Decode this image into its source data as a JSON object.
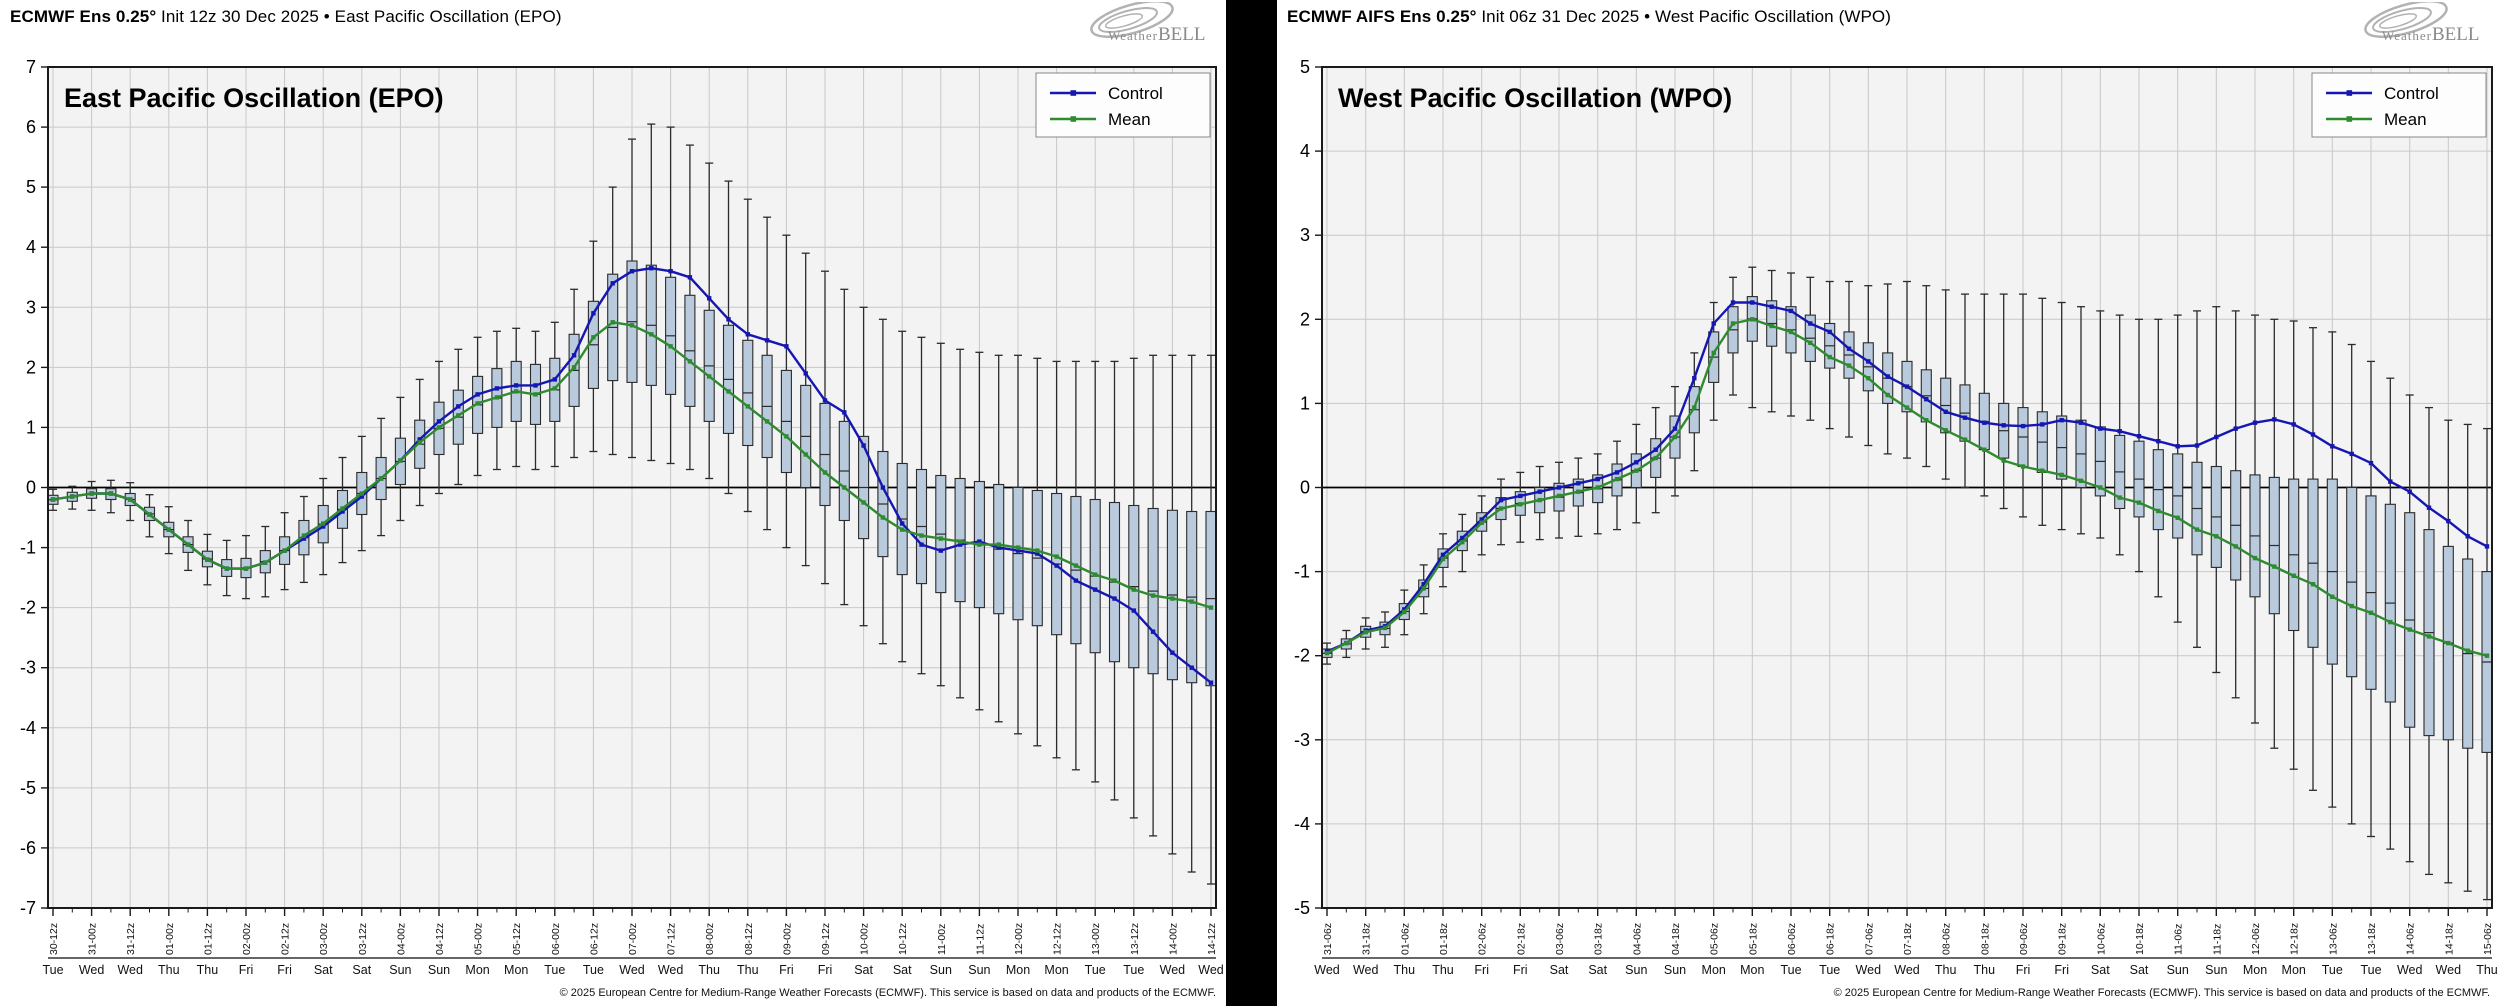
{
  "colors": {
    "control": "#1616b2",
    "mean": "#2f8b2f",
    "box_fill": "#b9cadd",
    "box_stroke": "#2b2b2b",
    "grid": "#c8c8c8",
    "plot_bg": "#f3f3f3",
    "zero_line": "#000000",
    "frame": "#1a1a1a",
    "divider": "#000000",
    "logo_gray": "#8a8a8a"
  },
  "panels": [
    {
      "header": {
        "bold": "ECMWF Ens 0.25°",
        "rest": " Init 12z 30 Dec 2025 • East Pacific Oscillation (EPO)"
      },
      "logo": {
        "weather": "Weather",
        "bell": "BELL"
      },
      "footer": "© 2025 European Centre for Medium-Range Weather Forecasts (ECMWF). This service is based on data and products of the ECMWF."
    },
    {
      "header": {
        "bold": "ECMWF AIFS Ens 0.25°",
        "rest": " Init 06z 31 Dec 2025 • West Pacific Oscillation (WPO)"
      },
      "logo": {
        "weather": "Weather",
        "bell": "BELL"
      },
      "footer": "© 2025 European Centre for Medium-Range Weather Forecasts (ECMWF). This service is based on data and products of the ECMWF."
    }
  ],
  "chart_data": [
    {
      "type": "line+box",
      "title": "East Pacific Oscillation (EPO)",
      "ylim": [
        -7,
        7
      ],
      "yticks": [
        7,
        6,
        5,
        4,
        3,
        2,
        1,
        0,
        -1,
        -2,
        -3,
        -4,
        -5,
        -6,
        -7
      ],
      "points_per_label": 2,
      "x_major_labels": [
        "30-12z",
        "31-00z",
        "31-12z",
        "01-00z",
        "01-12z",
        "02-00z",
        "02-12z",
        "03-00z",
        "03-12z",
        "04-00z",
        "04-12z",
        "05-00z",
        "05-12z",
        "06-00z",
        "06-12z",
        "07-00z",
        "07-12z",
        "08-00z",
        "08-12z",
        "09-00z",
        "09-12z",
        "10-00z",
        "10-12z",
        "11-00z",
        "11-12z",
        "12-00z",
        "12-12z",
        "13-00z",
        "13-12z",
        "14-00z",
        "14-12z"
      ],
      "x_day_labels": [
        "Tue",
        "Wed",
        "Wed",
        "Thu",
        "Thu",
        "Fri",
        "Fri",
        "Sat",
        "Sat",
        "Sun",
        "Sun",
        "Mon",
        "Mon",
        "Tue",
        "Tue",
        "Wed",
        "Wed",
        "Thu",
        "Thu",
        "Fri",
        "Fri",
        "Sat",
        "Sat",
        "Sun",
        "Sun",
        "Mon",
        "Mon",
        "Tue",
        "Tue",
        "Wed",
        "Wed"
      ],
      "legend": [
        {
          "label": "Control",
          "color": "#1616b2"
        },
        {
          "label": "Mean",
          "color": "#2f8b2f"
        }
      ],
      "legend_position": "top-right",
      "grid": true,
      "series": [
        {
          "name": "Control",
          "color": "#1616b2",
          "values": [
            -0.2,
            -0.15,
            -0.1,
            -0.1,
            -0.2,
            -0.45,
            -0.7,
            -0.95,
            -1.2,
            -1.35,
            -1.35,
            -1.25,
            -1.05,
            -0.85,
            -0.65,
            -0.4,
            -0.15,
            0.15,
            0.45,
            0.8,
            1.1,
            1.35,
            1.55,
            1.65,
            1.7,
            1.7,
            1.8,
            2.2,
            2.9,
            3.4,
            3.6,
            3.65,
            3.6,
            3.5,
            3.15,
            2.8,
            2.55,
            2.45,
            2.35,
            1.9,
            1.45,
            1.25,
            0.7,
            0.0,
            -0.6,
            -0.95,
            -1.05,
            -0.95,
            -0.9,
            -1.0,
            -1.05,
            -1.1,
            -1.3,
            -1.55,
            -1.7,
            -1.85,
            -2.05,
            -2.4,
            -2.75,
            -3.0,
            -3.25
          ]
        },
        {
          "name": "Mean",
          "color": "#2f8b2f",
          "values": [
            -0.2,
            -0.15,
            -0.1,
            -0.1,
            -0.2,
            -0.45,
            -0.7,
            -0.95,
            -1.2,
            -1.35,
            -1.35,
            -1.25,
            -1.05,
            -0.8,
            -0.6,
            -0.35,
            -0.1,
            0.15,
            0.45,
            0.75,
            1.0,
            1.2,
            1.4,
            1.5,
            1.6,
            1.55,
            1.65,
            2.0,
            2.5,
            2.75,
            2.7,
            2.55,
            2.35,
            2.1,
            1.85,
            1.6,
            1.35,
            1.1,
            0.85,
            0.55,
            0.25,
            0.0,
            -0.25,
            -0.5,
            -0.7,
            -0.8,
            -0.85,
            -0.9,
            -0.95,
            -0.95,
            -1.0,
            -1.05,
            -1.15,
            -1.3,
            -1.45,
            -1.55,
            -1.7,
            -1.8,
            -1.85,
            -1.9,
            -2.0
          ]
        }
      ],
      "boxes": {
        "q1": [
          -0.28,
          -0.23,
          -0.18,
          -0.2,
          -0.3,
          -0.55,
          -0.82,
          -1.08,
          -1.32,
          -1.48,
          -1.5,
          -1.42,
          -1.28,
          -1.12,
          -0.92,
          -0.68,
          -0.45,
          -0.2,
          0.05,
          0.32,
          0.55,
          0.72,
          0.9,
          1.0,
          1.1,
          1.05,
          1.1,
          1.35,
          1.65,
          1.78,
          1.75,
          1.7,
          1.55,
          1.35,
          1.1,
          0.9,
          0.7,
          0.5,
          0.25,
          0.0,
          -0.3,
          -0.55,
          -0.85,
          -1.15,
          -1.45,
          -1.6,
          -1.75,
          -1.9,
          -2.0,
          -2.1,
          -2.2,
          -2.3,
          -2.45,
          -2.6,
          -2.75,
          -2.9,
          -3.0,
          -3.1,
          -3.2,
          -3.25,
          -3.3
        ],
        "q3": [
          -0.13,
          -0.08,
          -0.02,
          -0.02,
          -0.1,
          -0.33,
          -0.58,
          -0.82,
          -1.06,
          -1.2,
          -1.18,
          -1.05,
          -0.82,
          -0.55,
          -0.3,
          -0.05,
          0.25,
          0.5,
          0.82,
          1.12,
          1.42,
          1.62,
          1.85,
          1.98,
          2.1,
          2.05,
          2.15,
          2.55,
          3.1,
          3.55,
          3.77,
          3.7,
          3.5,
          3.2,
          2.95,
          2.7,
          2.45,
          2.2,
          1.95,
          1.7,
          1.4,
          1.1,
          0.85,
          0.6,
          0.4,
          0.3,
          0.2,
          0.15,
          0.1,
          0.05,
          0.0,
          -0.05,
          -0.1,
          -0.15,
          -0.2,
          -0.25,
          -0.3,
          -0.35,
          -0.38,
          -0.4,
          -0.4
        ],
        "whisker_lo": [
          -0.38,
          -0.36,
          -0.38,
          -0.42,
          -0.55,
          -0.82,
          -1.1,
          -1.38,
          -1.62,
          -1.8,
          -1.85,
          -1.82,
          -1.7,
          -1.58,
          -1.45,
          -1.25,
          -1.05,
          -0.8,
          -0.55,
          -0.3,
          -0.1,
          0.05,
          0.2,
          0.3,
          0.35,
          0.3,
          0.35,
          0.5,
          0.6,
          0.55,
          0.5,
          0.45,
          0.4,
          0.3,
          0.15,
          -0.1,
          -0.4,
          -0.7,
          -1.0,
          -1.3,
          -1.6,
          -1.95,
          -2.3,
          -2.6,
          -2.9,
          -3.1,
          -3.3,
          -3.5,
          -3.7,
          -3.9,
          -4.1,
          -4.3,
          -4.5,
          -4.7,
          -4.9,
          -5.2,
          -5.5,
          -5.8,
          -6.1,
          -6.4,
          -6.6
        ],
        "whisker_hi": [
          -0.03,
          0.02,
          0.1,
          0.12,
          0.08,
          -0.12,
          -0.32,
          -0.55,
          -0.78,
          -0.88,
          -0.8,
          -0.65,
          -0.42,
          -0.15,
          0.15,
          0.5,
          0.85,
          1.15,
          1.5,
          1.8,
          2.1,
          2.3,
          2.5,
          2.6,
          2.65,
          2.6,
          2.75,
          3.3,
          4.1,
          5.0,
          5.8,
          6.05,
          6.0,
          5.7,
          5.4,
          5.1,
          4.8,
          4.5,
          4.2,
          3.9,
          3.6,
          3.3,
          3.0,
          2.8,
          2.6,
          2.5,
          2.4,
          2.3,
          2.25,
          2.2,
          2.2,
          2.15,
          2.1,
          2.1,
          2.1,
          2.1,
          2.15,
          2.2,
          2.2,
          2.2,
          2.2
        ]
      }
    },
    {
      "type": "line+box",
      "title": "West Pacific Oscillation (WPO)",
      "ylim": [
        -5,
        5
      ],
      "yticks": [
        5,
        4,
        3,
        2,
        1,
        0,
        -1,
        -2,
        -3,
        -4,
        -5
      ],
      "points_per_label": 2,
      "x_major_labels": [
        "31-06z",
        "31-18z",
        "01-06z",
        "01-18z",
        "02-06z",
        "02-18z",
        "03-06z",
        "03-18z",
        "04-06z",
        "04-18z",
        "05-06z",
        "05-18z",
        "06-06z",
        "06-18z",
        "07-06z",
        "07-18z",
        "08-06z",
        "08-18z",
        "09-06z",
        "09-18z",
        "10-06z",
        "10-18z",
        "11-06z",
        "11-18z",
        "12-06z",
        "12-18z",
        "13-06z",
        "13-18z",
        "14-06z",
        "14-18z",
        "15-06z"
      ],
      "x_day_labels": [
        "Wed",
        "Wed",
        "Thu",
        "Thu",
        "Fri",
        "Fri",
        "Sat",
        "Sat",
        "Sun",
        "Sun",
        "Mon",
        "Mon",
        "Tue",
        "Tue",
        "Wed",
        "Wed",
        "Thu",
        "Thu",
        "Fri",
        "Fri",
        "Sat",
        "Sat",
        "Sun",
        "Sun",
        "Mon",
        "Mon",
        "Tue",
        "Tue",
        "Wed",
        "Wed",
        "Thu"
      ],
      "legend": [
        {
          "label": "Control",
          "color": "#1616b2"
        },
        {
          "label": "Mean",
          "color": "#2f8b2f"
        }
      ],
      "legend_position": "top-right",
      "grid": true,
      "series": [
        {
          "name": "Control",
          "color": "#1616b2",
          "values": [
            -1.95,
            -1.85,
            -1.7,
            -1.65,
            -1.45,
            -1.15,
            -0.8,
            -0.6,
            -0.38,
            -0.15,
            -0.1,
            -0.05,
            0.0,
            0.05,
            0.1,
            0.18,
            0.3,
            0.45,
            0.7,
            1.3,
            1.95,
            2.2,
            2.2,
            2.15,
            2.1,
            1.95,
            1.85,
            1.65,
            1.5,
            1.32,
            1.2,
            1.05,
            0.9,
            0.83,
            0.77,
            0.74,
            0.73,
            0.75,
            0.8,
            0.77,
            0.7,
            0.67,
            0.61,
            0.55,
            0.49,
            0.5,
            0.6,
            0.7,
            0.77,
            0.81,
            0.75,
            0.63,
            0.49,
            0.4,
            0.29,
            0.07,
            -0.05,
            -0.24,
            -0.4,
            -0.58,
            -0.7
          ]
        },
        {
          "name": "Mean",
          "color": "#2f8b2f",
          "values": [
            -1.97,
            -1.85,
            -1.72,
            -1.67,
            -1.48,
            -1.2,
            -0.85,
            -0.65,
            -0.42,
            -0.25,
            -0.2,
            -0.15,
            -0.1,
            -0.05,
            0.0,
            0.1,
            0.2,
            0.35,
            0.6,
            0.95,
            1.6,
            1.95,
            2.0,
            1.92,
            1.85,
            1.72,
            1.55,
            1.45,
            1.3,
            1.1,
            0.95,
            0.8,
            0.68,
            0.57,
            0.45,
            0.32,
            0.25,
            0.2,
            0.15,
            0.08,
            0.0,
            -0.12,
            -0.18,
            -0.28,
            -0.36,
            -0.5,
            -0.58,
            -0.7,
            -0.84,
            -0.94,
            -1.05,
            -1.15,
            -1.3,
            -1.41,
            -1.49,
            -1.6,
            -1.69,
            -1.77,
            -1.85,
            -1.94,
            -2.0
          ]
        }
      ],
      "boxes": {
        "q1": [
          -2.02,
          -1.92,
          -1.78,
          -1.75,
          -1.57,
          -1.3,
          -0.95,
          -0.75,
          -0.52,
          -0.38,
          -0.33,
          -0.3,
          -0.28,
          -0.22,
          -0.18,
          -0.1,
          0.0,
          0.12,
          0.35,
          0.65,
          1.25,
          1.6,
          1.74,
          1.68,
          1.6,
          1.5,
          1.42,
          1.3,
          1.15,
          1.0,
          0.9,
          0.78,
          0.65,
          0.55,
          0.45,
          0.35,
          0.25,
          0.18,
          0.1,
          0.0,
          -0.1,
          -0.25,
          -0.35,
          -0.5,
          -0.6,
          -0.8,
          -0.95,
          -1.1,
          -1.3,
          -1.5,
          -1.7,
          -1.9,
          -2.1,
          -2.25,
          -2.4,
          -2.55,
          -2.85,
          -2.95,
          -3.0,
          -3.1,
          -3.15
        ],
        "q3": [
          -1.92,
          -1.8,
          -1.65,
          -1.6,
          -1.38,
          -1.1,
          -0.73,
          -0.52,
          -0.3,
          -0.12,
          -0.05,
          0.0,
          0.05,
          0.1,
          0.15,
          0.28,
          0.4,
          0.58,
          0.85,
          1.2,
          1.85,
          2.15,
          2.27,
          2.22,
          2.15,
          2.05,
          1.95,
          1.85,
          1.72,
          1.6,
          1.5,
          1.4,
          1.3,
          1.22,
          1.12,
          1.0,
          0.95,
          0.9,
          0.85,
          0.8,
          0.72,
          0.62,
          0.55,
          0.45,
          0.4,
          0.3,
          0.25,
          0.2,
          0.15,
          0.12,
          0.1,
          0.1,
          0.1,
          0.0,
          -0.1,
          -0.2,
          -0.3,
          -0.5,
          -0.7,
          -0.85,
          -1.0
        ],
        "whisker_lo": [
          -2.1,
          -2.02,
          -1.92,
          -1.9,
          -1.75,
          -1.5,
          -1.18,
          -1.0,
          -0.8,
          -0.68,
          -0.65,
          -0.62,
          -0.6,
          -0.58,
          -0.55,
          -0.5,
          -0.42,
          -0.3,
          -0.1,
          0.2,
          0.8,
          1.1,
          0.95,
          0.9,
          0.85,
          0.8,
          0.7,
          0.6,
          0.5,
          0.4,
          0.35,
          0.25,
          0.1,
          0.0,
          -0.1,
          -0.25,
          -0.35,
          -0.45,
          -0.5,
          -0.55,
          -0.6,
          -0.8,
          -1.0,
          -1.3,
          -1.6,
          -1.9,
          -2.2,
          -2.5,
          -2.8,
          -3.1,
          -3.35,
          -3.6,
          -3.8,
          -4.0,
          -4.15,
          -4.3,
          -4.45,
          -4.6,
          -4.7,
          -4.8,
          -4.9
        ],
        "whisker_hi": [
          -1.85,
          -1.7,
          -1.55,
          -1.48,
          -1.22,
          -0.92,
          -0.55,
          -0.32,
          -0.1,
          0.1,
          0.18,
          0.25,
          0.3,
          0.35,
          0.4,
          0.55,
          0.75,
          0.95,
          1.2,
          1.6,
          2.2,
          2.5,
          2.62,
          2.58,
          2.55,
          2.5,
          2.45,
          2.45,
          2.4,
          2.42,
          2.45,
          2.4,
          2.35,
          2.3,
          2.3,
          2.3,
          2.3,
          2.25,
          2.2,
          2.15,
          2.1,
          2.05,
          2.0,
          2.0,
          2.05,
          2.1,
          2.15,
          2.1,
          2.05,
          2.0,
          1.98,
          1.9,
          1.85,
          1.7,
          1.5,
          1.3,
          1.1,
          0.95,
          0.8,
          0.75,
          0.7
        ]
      }
    }
  ]
}
